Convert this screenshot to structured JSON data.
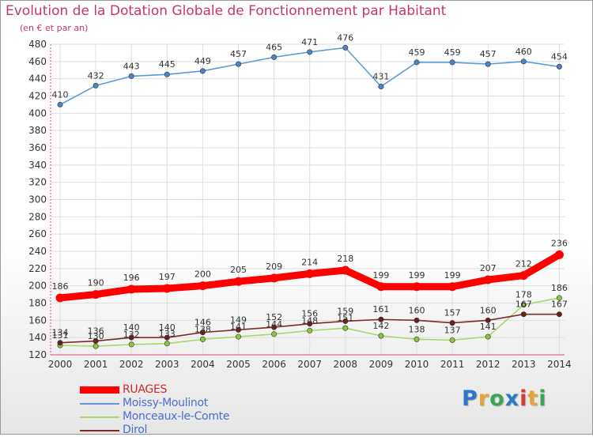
{
  "header": {
    "title": "Evolution de la Dotation Globale de Fonctionnement par Habitant",
    "subtitle": "(en € et par an)"
  },
  "brand": {
    "logo_text": "Proxiti",
    "letter_colors": [
      "#2b78c8",
      "#e8a33a",
      "#3aa655",
      "#2b78c8",
      "#d83a2f",
      "#e8a33a",
      "#3aa655"
    ]
  },
  "colors": {
    "title": "#c8356a",
    "axis": "#d94a78",
    "grid": "#dedede",
    "label": "#333333"
  },
  "chart_data": {
    "type": "line",
    "title": "Evolution de la Dotation Globale de Fonctionnement par Habitant",
    "subtitle": "(en € et par an)",
    "x": [
      "2000",
      "2001",
      "2002",
      "2003",
      "2004",
      "2005",
      "2006",
      "2007",
      "2008",
      "2009",
      "2010",
      "2011",
      "2012",
      "2013",
      "2014"
    ],
    "ylim": [
      120,
      480
    ],
    "ytick_step": 20,
    "yticks": [
      "120",
      "140",
      "160",
      "180",
      "200",
      "220",
      "240",
      "260",
      "280",
      "300",
      "320",
      "340",
      "360",
      "380",
      "400",
      "420",
      "440",
      "460",
      "480"
    ],
    "grid": true,
    "legend_position": "bottom-left",
    "series": [
      {
        "name": "Moissy-Moulinot",
        "color": "#5b9bd5",
        "marker": "#4a86c5",
        "values": [
          410,
          432,
          443,
          445,
          449,
          457,
          465,
          471,
          476,
          431,
          459,
          459,
          457,
          460,
          454
        ]
      },
      {
        "name": "Monceaux-le-Comte",
        "color": "#a6d96a",
        "marker": "#8cc63f",
        "values": [
          131,
          130,
          132,
          133,
          138,
          141,
          144,
          148,
          151,
          142,
          138,
          137,
          141,
          178,
          186
        ]
      },
      {
        "name": "Dirol",
        "color": "#7b2a2a",
        "marker": "#6b1f1f",
        "values": [
          134,
          136,
          140,
          140,
          146,
          149,
          152,
          156,
          159,
          161,
          160,
          157,
          160,
          167,
          167
        ]
      },
      {
        "name": "RUAGES",
        "color": "#ff0000",
        "marker": "#ff0000",
        "values": [
          186,
          190,
          196,
          197,
          200,
          205,
          209,
          214,
          218,
          199,
          199,
          199,
          207,
          212,
          236
        ]
      }
    ],
    "legend_order": [
      "RUAGES",
      "Moissy-Moulinot",
      "Monceaux-le-Comte",
      "Dirol"
    ]
  }
}
